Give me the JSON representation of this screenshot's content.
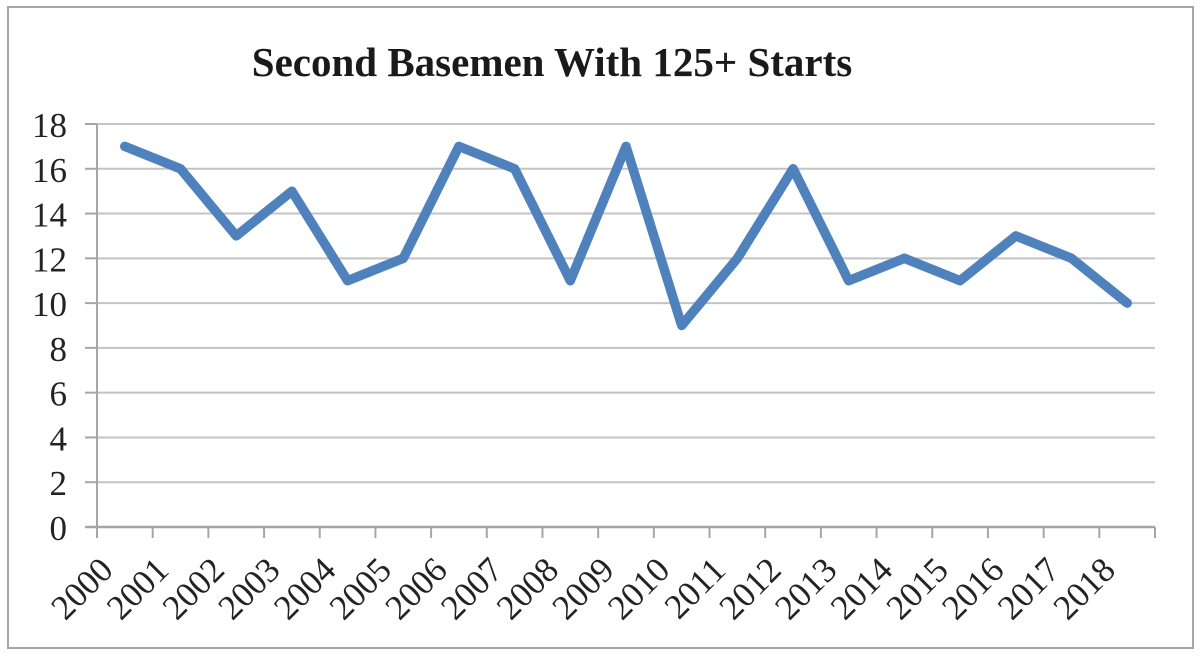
{
  "chart_data": {
    "type": "line",
    "title": "Second Basemen With 125+ Starts",
    "categories": [
      "2000",
      "2001",
      "2002",
      "2003",
      "2004",
      "2005",
      "2006",
      "2007",
      "2008",
      "2009",
      "2010",
      "2011",
      "2012",
      "2013",
      "2014",
      "2015",
      "2016",
      "2017",
      "2018"
    ],
    "values": [
      17,
      16,
      13,
      15,
      11,
      12,
      17,
      16,
      11,
      17,
      9,
      12,
      16,
      11,
      12,
      11,
      13,
      12,
      10
    ],
    "xlabel": "",
    "ylabel": "",
    "ylim": [
      0,
      18
    ],
    "ytick_step": 2,
    "ytick_labels": [
      "0",
      "2",
      "4",
      "6",
      "8",
      "10",
      "12",
      "14",
      "16",
      "18"
    ],
    "grid": "horizontal-only",
    "legend_position": "none",
    "x_label_rotation_deg": -45,
    "colors": {
      "line": "#4F81BD",
      "gridline": "#C3C3C3",
      "axis": "#A6A6A6",
      "border": "#A6A6A6",
      "text": "#232323",
      "background": "#FFFFFF"
    }
  }
}
